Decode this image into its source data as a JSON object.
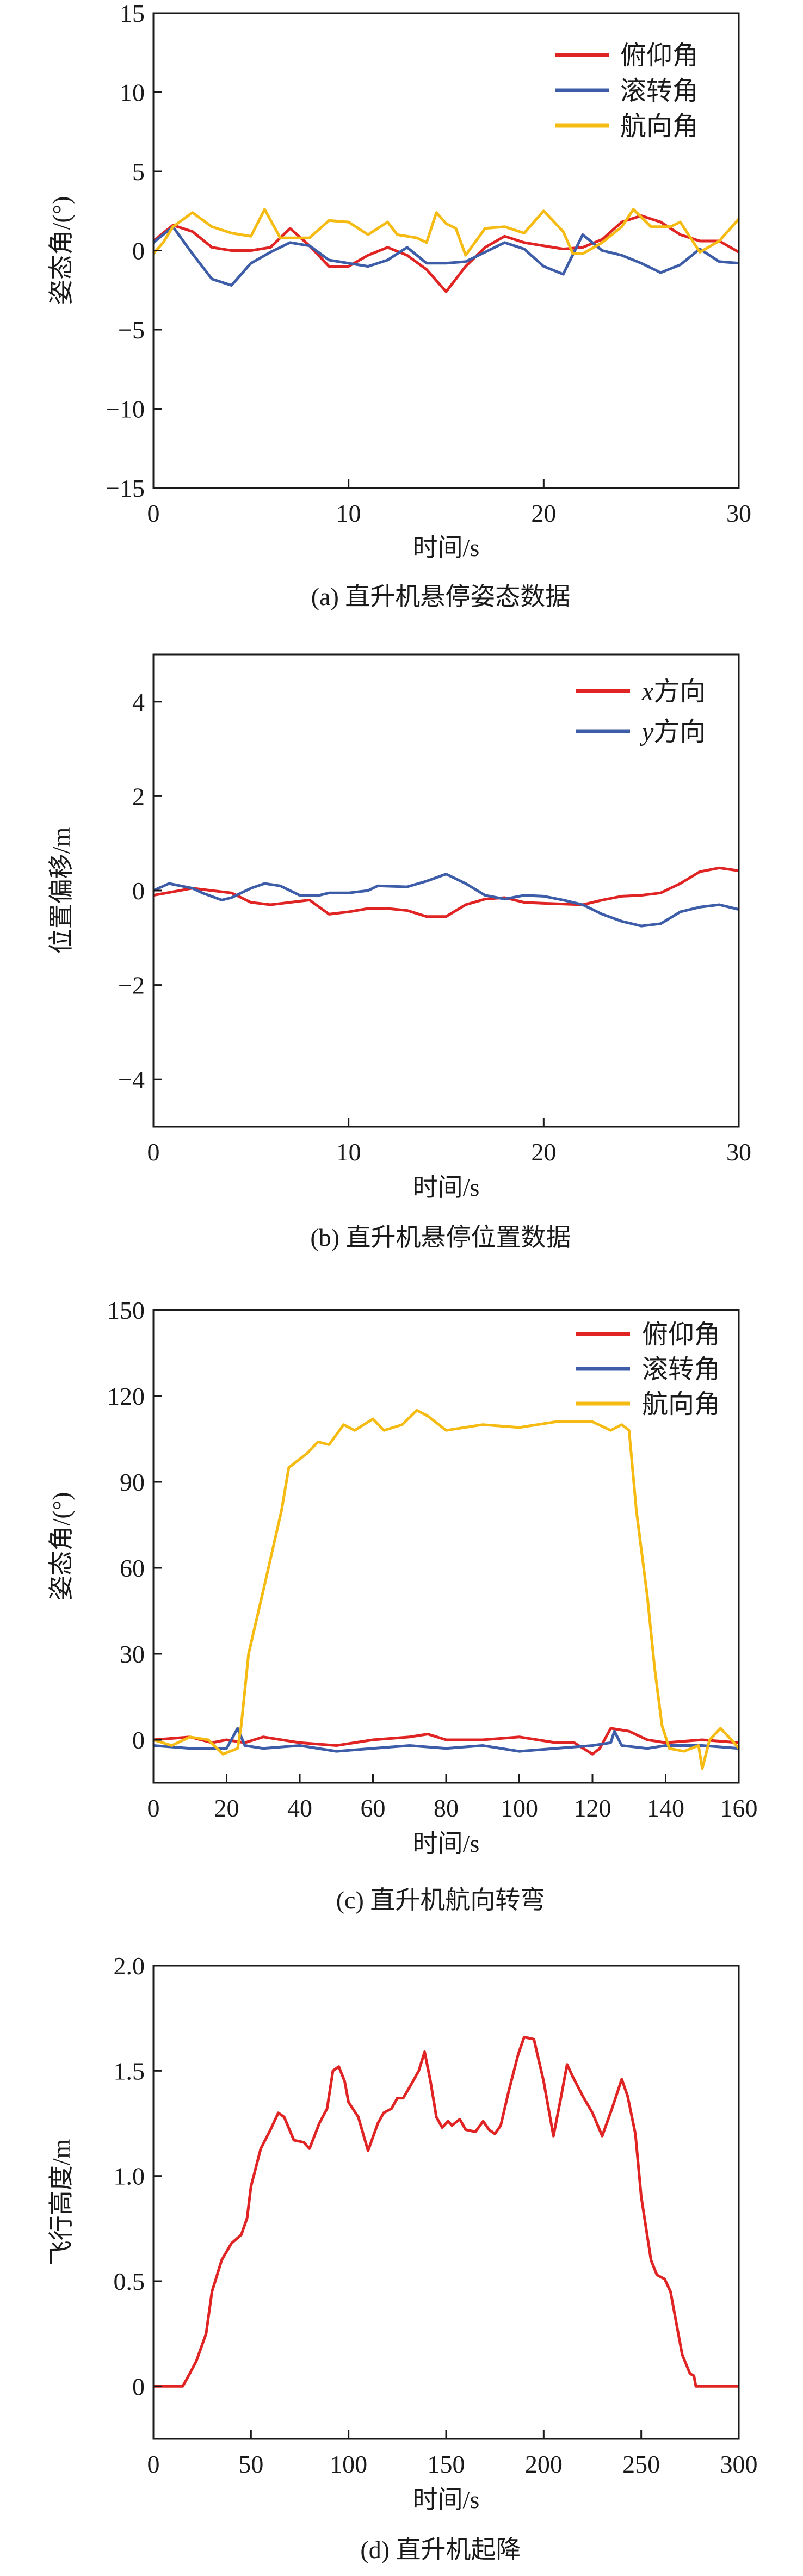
{
  "colors": {
    "pitch": "#e02424",
    "roll": "#3d5da8",
    "yaw": "#f6bb12",
    "x": "#e02424",
    "y": "#3d5da8"
  },
  "chart_data": [
    {
      "type": "line",
      "caption": "(a) 直升机悬停姿态数据",
      "xlabel": "时间/s",
      "ylabel": "姿态角/(°)",
      "xlim": [
        0,
        30
      ],
      "ylim": [
        -15,
        15
      ],
      "xticks": [
        0,
        10,
        20,
        30
      ],
      "yticks": [
        -15,
        -10,
        -5,
        0,
        5,
        10,
        15
      ],
      "legend": "top-right",
      "grid": false,
      "series": [
        {
          "name": "俯仰角",
          "color": "#e02424",
          "x": [
            0,
            1,
            2,
            3,
            4,
            5,
            6,
            7,
            8,
            9,
            10,
            11,
            12,
            13,
            14,
            15,
            16,
            17,
            18,
            19,
            20,
            21,
            22,
            23,
            24,
            25,
            26,
            27,
            28,
            29,
            30
          ],
          "y": [
            0.6,
            1.6,
            1.2,
            0.2,
            0,
            0,
            0.2,
            1.4,
            0.3,
            -1,
            -1,
            -0.3,
            0.2,
            -0.3,
            -1.2,
            -2.6,
            -1,
            0.2,
            0.9,
            0.5,
            0.3,
            0.1,
            0.2,
            0.7,
            1.8,
            2.2,
            1.8,
            1,
            0.6,
            0.6,
            -0.1
          ]
        },
        {
          "name": "滚转角",
          "color": "#3d5da8",
          "x": [
            0,
            1,
            2,
            3,
            4,
            5,
            6,
            7,
            8,
            9,
            10,
            11,
            12,
            13,
            14,
            15,
            16,
            17,
            18,
            19,
            20,
            21,
            22,
            23,
            24,
            25,
            26,
            27,
            28,
            29,
            30
          ],
          "y": [
            0.5,
            1.5,
            -0.2,
            -1.8,
            -2.2,
            -0.8,
            -0.1,
            0.5,
            0.3,
            -0.6,
            -0.8,
            -1.0,
            -0.6,
            0.2,
            -0.8,
            -0.8,
            -0.7,
            -0.1,
            0.5,
            0.1,
            -1,
            -1.5,
            1.0,
            0,
            -0.3,
            -0.8,
            -1.4,
            -0.9,
            0.1,
            -0.7,
            -0.8
          ]
        },
        {
          "name": "航向角",
          "color": "#f6bb12",
          "x": [
            0,
            0.5,
            1,
            2,
            3,
            4,
            5,
            5.7,
            6.5,
            7.5,
            8,
            9,
            10,
            11,
            12,
            12.5,
            13.5,
            14,
            14.5,
            15,
            15.5,
            16,
            17,
            18,
            19,
            20,
            21,
            21.5,
            22,
            23,
            24,
            24.6,
            25.5,
            26.5,
            27,
            28,
            29,
            30
          ],
          "y": [
            -0.2,
            0.5,
            1.5,
            2.4,
            1.5,
            1.1,
            0.9,
            2.6,
            0.8,
            0.8,
            0.8,
            1.9,
            1.8,
            1.0,
            1.8,
            1,
            0.8,
            0.5,
            2.4,
            1.7,
            1.4,
            -0.3,
            1.4,
            1.5,
            1.1,
            2.5,
            1.2,
            -0.2,
            -0.2,
            0.5,
            1.5,
            2.6,
            1.5,
            1.5,
            1.8,
            -0.1,
            0.6,
            2
          ]
        }
      ]
    },
    {
      "type": "line",
      "caption": "(b) 直升机悬停位置数据",
      "xlabel": "时间/s",
      "ylabel": "位置偏移/m",
      "xlim": [
        0,
        30
      ],
      "ylim": [
        -5,
        5
      ],
      "xticks": [
        0,
        10,
        20,
        30
      ],
      "yticks": [
        -4,
        -2,
        0,
        2,
        4
      ],
      "legend": "top-right",
      "grid": false,
      "series": [
        {
          "name": "x方向",
          "color": "#e02424",
          "x": [
            0,
            2,
            4,
            5,
            6,
            7,
            8,
            9,
            10,
            11,
            12,
            13,
            14,
            15,
            16,
            17,
            18,
            19,
            20,
            22,
            23,
            24,
            25,
            26,
            27,
            28,
            29,
            30
          ],
          "y": [
            -0.1,
            0.05,
            -0.05,
            -0.25,
            -0.3,
            -0.25,
            -0.2,
            -0.5,
            -0.45,
            -0.38,
            -0.38,
            -0.42,
            -0.55,
            -0.55,
            -0.3,
            -0.18,
            -0.15,
            -0.25,
            -0.27,
            -0.3,
            -0.2,
            -0.12,
            -0.1,
            -0.05,
            0.15,
            0.4,
            0.48,
            0.42
          ]
        },
        {
          "name": "y方向",
          "color": "#3d5da8",
          "x": [
            0,
            0.8,
            2,
            2.5,
            3.5,
            4,
            4.5,
            5,
            5.7,
            6.5,
            7.5,
            8.5,
            9,
            10,
            11,
            11.5,
            13,
            14,
            15,
            16,
            17,
            18,
            19,
            20,
            21,
            22,
            23,
            24,
            25,
            26,
            27,
            28,
            29,
            30
          ],
          "y": [
            0,
            0.15,
            0.05,
            -0.05,
            -0.2,
            -0.15,
            -0.05,
            0.05,
            0.15,
            0.1,
            -0.1,
            -0.1,
            -0.05,
            -0.05,
            0,
            0.1,
            0.08,
            0.2,
            0.35,
            0.15,
            -0.1,
            -0.18,
            -0.1,
            -0.12,
            -0.2,
            -0.3,
            -0.5,
            -0.65,
            -0.75,
            -0.7,
            -0.45,
            -0.35,
            -0.3,
            -0.4
          ]
        }
      ]
    },
    {
      "type": "line",
      "caption": "(c) 直升机航向转弯",
      "xlabel": "时间/s",
      "ylabel": "姿态角/(°)",
      "xlim": [
        0,
        160
      ],
      "ylim": [
        -15,
        150
      ],
      "xticks": [
        0,
        20,
        40,
        60,
        80,
        100,
        120,
        140,
        160
      ],
      "yticks": [
        0,
        30,
        60,
        90,
        120,
        150
      ],
      "legend": "top-right",
      "grid": false,
      "series": [
        {
          "name": "俯仰角",
          "color": "#e02424",
          "x": [
            0,
            10,
            16,
            20,
            25,
            30,
            40,
            50,
            60,
            70,
            75,
            80,
            90,
            100,
            110,
            115,
            120,
            122,
            125,
            130,
            135,
            140,
            150,
            160
          ],
          "y": [
            0,
            1,
            -1,
            0,
            -1,
            1,
            -1,
            -2,
            0,
            1,
            2,
            0,
            0,
            1,
            -1,
            -1,
            -5,
            -3,
            4,
            3,
            0,
            -1,
            0,
            -1
          ]
        },
        {
          "name": "滚转角",
          "color": "#3d5da8",
          "x": [
            0,
            10,
            20,
            23,
            25,
            30,
            40,
            50,
            60,
            70,
            80,
            90,
            100,
            110,
            120,
            125,
            126,
            128,
            135,
            140,
            150,
            160
          ],
          "y": [
            -2,
            -3,
            -3,
            4,
            -2,
            -3,
            -2,
            -4,
            -3,
            -2,
            -3,
            -2,
            -4,
            -3,
            -2,
            -1,
            3,
            -2,
            -3,
            -2,
            -2,
            -3
          ]
        },
        {
          "name": "航向角",
          "color": "#f6bb12",
          "x": [
            0,
            5,
            10,
            15,
            19,
            23,
            24,
            26,
            30,
            35,
            37,
            40,
            42,
            45,
            48,
            52,
            55,
            60,
            63,
            68,
            72,
            75,
            80,
            90,
            100,
            110,
            120,
            125,
            128,
            130,
            132,
            135,
            137,
            139,
            141,
            145,
            149,
            150,
            152,
            155,
            158,
            160
          ],
          "y": [
            0,
            -2,
            1,
            0,
            -5,
            -3,
            5,
            30,
            52,
            80,
            95,
            98,
            100,
            104,
            103,
            110,
            108,
            112,
            108,
            110,
            115,
            113,
            108,
            110,
            109,
            111,
            111,
            108,
            110,
            108,
            80,
            50,
            25,
            5,
            -3,
            -4,
            -2,
            -10,
            0,
            4,
            0,
            -3
          ]
        }
      ]
    },
    {
      "type": "line",
      "caption": "(d) 直升机起降",
      "xlabel": "时间/s",
      "ylabel": "飞行高度/m",
      "xlim": [
        0,
        300
      ],
      "ylim": [
        -0.25,
        2.0
      ],
      "xticks": [
        0,
        50,
        100,
        150,
        200,
        250,
        300
      ],
      "yticks": [
        "0",
        "0.5",
        "1.0",
        "1.5",
        "2.0"
      ],
      "legend": "none",
      "grid": false,
      "series": [
        {
          "color": "#e02424",
          "x": [
            0,
            15,
            18,
            22,
            27,
            30,
            35,
            40,
            45,
            48,
            50,
            55,
            60,
            64,
            67,
            72,
            77,
            80,
            85,
            89,
            92,
            95,
            98,
            100,
            105,
            110,
            115,
            118,
            122,
            125,
            128,
            133,
            136,
            139,
            142,
            145,
            148,
            151,
            153,
            157,
            160,
            165,
            169,
            172,
            175,
            178,
            182,
            187,
            190,
            195,
            200,
            205,
            209,
            212,
            215,
            220,
            225,
            230,
            235,
            240,
            243,
            247,
            250,
            255,
            258,
            262,
            265,
            268,
            271,
            275,
            277,
            278,
            300
          ],
          "y": [
            0,
            0,
            0.05,
            0.12,
            0.25,
            0.45,
            0.6,
            0.68,
            0.72,
            0.8,
            0.95,
            1.13,
            1.22,
            1.3,
            1.28,
            1.17,
            1.16,
            1.13,
            1.25,
            1.32,
            1.5,
            1.52,
            1.45,
            1.35,
            1.28,
            1.12,
            1.25,
            1.3,
            1.32,
            1.37,
            1.37,
            1.45,
            1.5,
            1.59,
            1.45,
            1.28,
            1.23,
            1.26,
            1.24,
            1.27,
            1.22,
            1.21,
            1.26,
            1.22,
            1.2,
            1.24,
            1.4,
            1.58,
            1.66,
            1.65,
            1.45,
            1.19,
            1.38,
            1.53,
            1.47,
            1.38,
            1.3,
            1.19,
            1.32,
            1.46,
            1.38,
            1.2,
            0.9,
            0.6,
            0.53,
            0.51,
            0.45,
            0.3,
            0.15,
            0.06,
            0.05,
            0,
            0
          ]
        }
      ]
    }
  ]
}
